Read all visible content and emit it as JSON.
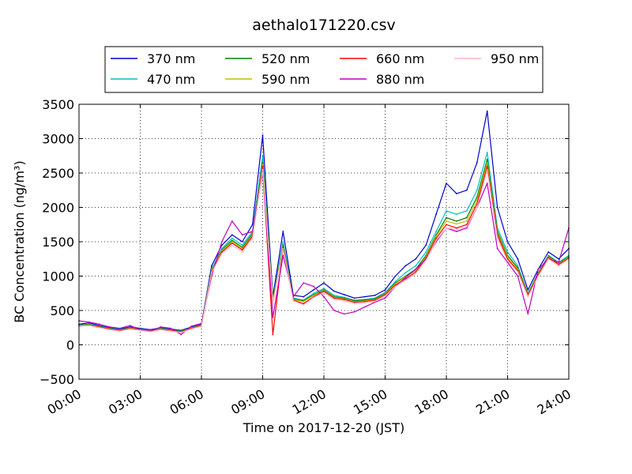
{
  "chart_data": {
    "type": "line",
    "title": "aethalo171220.csv",
    "xlabel": "Time on 2017-12-20 (JST)",
    "ylabel": "BC Concentration (ng/m³)",
    "xlim": [
      "00:00",
      "24:00"
    ],
    "ylim": [
      -500,
      3500
    ],
    "grid": true,
    "legend_position": "top-center",
    "x_ticks": [
      "00:00",
      "03:00",
      "06:00",
      "09:00",
      "12:00",
      "15:00",
      "18:00",
      "21:00",
      "24:00"
    ],
    "y_ticks": [
      -500,
      0,
      500,
      1000,
      1500,
      2000,
      2500,
      3000,
      3500
    ],
    "x": [
      "00:00",
      "00:30",
      "01:00",
      "01:30",
      "02:00",
      "02:30",
      "03:00",
      "03:30",
      "04:00",
      "04:30",
      "05:00",
      "05:30",
      "06:00",
      "06:30",
      "07:00",
      "07:30",
      "08:00",
      "08:30",
      "09:00",
      "09:30",
      "10:00",
      "10:30",
      "11:00",
      "11:30",
      "12:00",
      "12:30",
      "13:00",
      "13:30",
      "14:00",
      "14:30",
      "15:00",
      "15:30",
      "16:00",
      "16:30",
      "17:00",
      "17:30",
      "18:00",
      "18:30",
      "19:00",
      "19:30",
      "20:00",
      "20:30",
      "21:00",
      "21:30",
      "22:00",
      "22:30",
      "23:00",
      "23:30",
      "24:00"
    ],
    "series": [
      {
        "name": "370 nm",
        "color": "#0000cc",
        "values": [
          300,
          320,
          280,
          250,
          230,
          260,
          240,
          220,
          250,
          230,
          210,
          260,
          300,
          1150,
          1450,
          1600,
          1500,
          1750,
          3050,
          700,
          1650,
          720,
          700,
          800,
          900,
          780,
          730,
          680,
          700,
          720,
          800,
          1000,
          1150,
          1250,
          1450,
          1900,
          2350,
          2200,
          2250,
          2650,
          3400,
          2000,
          1500,
          1250,
          800,
          1100,
          1350,
          1250,
          1400
        ]
      },
      {
        "name": "470 nm",
        "color": "#00bfbf",
        "values": [
          290,
          300,
          270,
          240,
          220,
          250,
          230,
          210,
          240,
          220,
          200,
          250,
          290,
          1100,
          1400,
          1550,
          1450,
          1650,
          2750,
          650,
          1500,
          680,
          650,
          750,
          820,
          720,
          690,
          650,
          660,
          680,
          760,
          920,
          1050,
          1150,
          1350,
          1650,
          1950,
          1900,
          1950,
          2250,
          2800,
          1700,
          1350,
          1150,
          750,
          1050,
          1300,
          1200,
          1300
        ]
      },
      {
        "name": "520 nm",
        "color": "#008000",
        "values": [
          285,
          295,
          265,
          235,
          215,
          245,
          225,
          205,
          235,
          215,
          195,
          245,
          285,
          1080,
          1380,
          1520,
          1420,
          1620,
          2650,
          640,
          1450,
          670,
          640,
          730,
          800,
          700,
          680,
          640,
          650,
          670,
          750,
          900,
          1000,
          1100,
          1300,
          1600,
          1850,
          1800,
          1850,
          2150,
          2700,
          1650,
          1300,
          1120,
          740,
          1040,
          1290,
          1190,
          1280
        ]
      },
      {
        "name": "590 nm",
        "color": "#bfbf00",
        "values": [
          280,
          290,
          262,
          232,
          212,
          242,
          222,
          202,
          232,
          212,
          192,
          242,
          282,
          1070,
          1370,
          1500,
          1400,
          1600,
          2620,
          630,
          1430,
          660,
          630,
          720,
          790,
          690,
          670,
          630,
          640,
          660,
          740,
          890,
          990,
          1080,
          1280,
          1580,
          1800,
          1760,
          1800,
          2100,
          2650,
          1620,
          1280,
          1100,
          730,
          1030,
          1280,
          1180,
          1270
        ]
      },
      {
        "name": "660 nm",
        "color": "#ff0000",
        "values": [
          275,
          285,
          258,
          228,
          208,
          238,
          218,
          198,
          228,
          208,
          188,
          238,
          278,
          1060,
          1350,
          1480,
          1380,
          1580,
          2600,
          150,
          1420,
          650,
          600,
          700,
          780,
          680,
          660,
          620,
          630,
          650,
          730,
          870,
          960,
          1060,
          1260,
          1550,
          1750,
          1700,
          1750,
          2050,
          2600,
          1600,
          1250,
          1080,
          720,
          1020,
          1270,
          1170,
          1260
        ]
      },
      {
        "name": "880 nm",
        "color": "#bf00bf",
        "values": [
          350,
          330,
          300,
          260,
          240,
          280,
          220,
          200,
          260,
          240,
          150,
          270,
          310,
          1000,
          1500,
          1800,
          1600,
          1650,
          2500,
          400,
          1300,
          700,
          900,
          850,
          700,
          500,
          450,
          480,
          550,
          620,
          680,
          850,
          980,
          1100,
          1250,
          1500,
          1700,
          1650,
          1700,
          2000,
          2350,
          1400,
          1200,
          1000,
          450,
          1100,
          1250,
          1200,
          1700
        ]
      },
      {
        "name": "950 nm",
        "color": "#ffb6c1",
        "values": [
          270,
          280,
          250,
          220,
          200,
          230,
          210,
          190,
          220,
          200,
          180,
          230,
          270,
          1050,
          1330,
          1450,
          1350,
          1550,
          2550,
          600,
          1400,
          640,
          580,
          690,
          760,
          660,
          640,
          600,
          610,
          630,
          710,
          850,
          940,
          1040,
          1230,
          1520,
          1700,
          1680,
          1720,
          2000,
          2550,
          1550,
          1220,
          1060,
          700,
          1000,
          1250,
          1150,
          1250
        ]
      }
    ]
  }
}
